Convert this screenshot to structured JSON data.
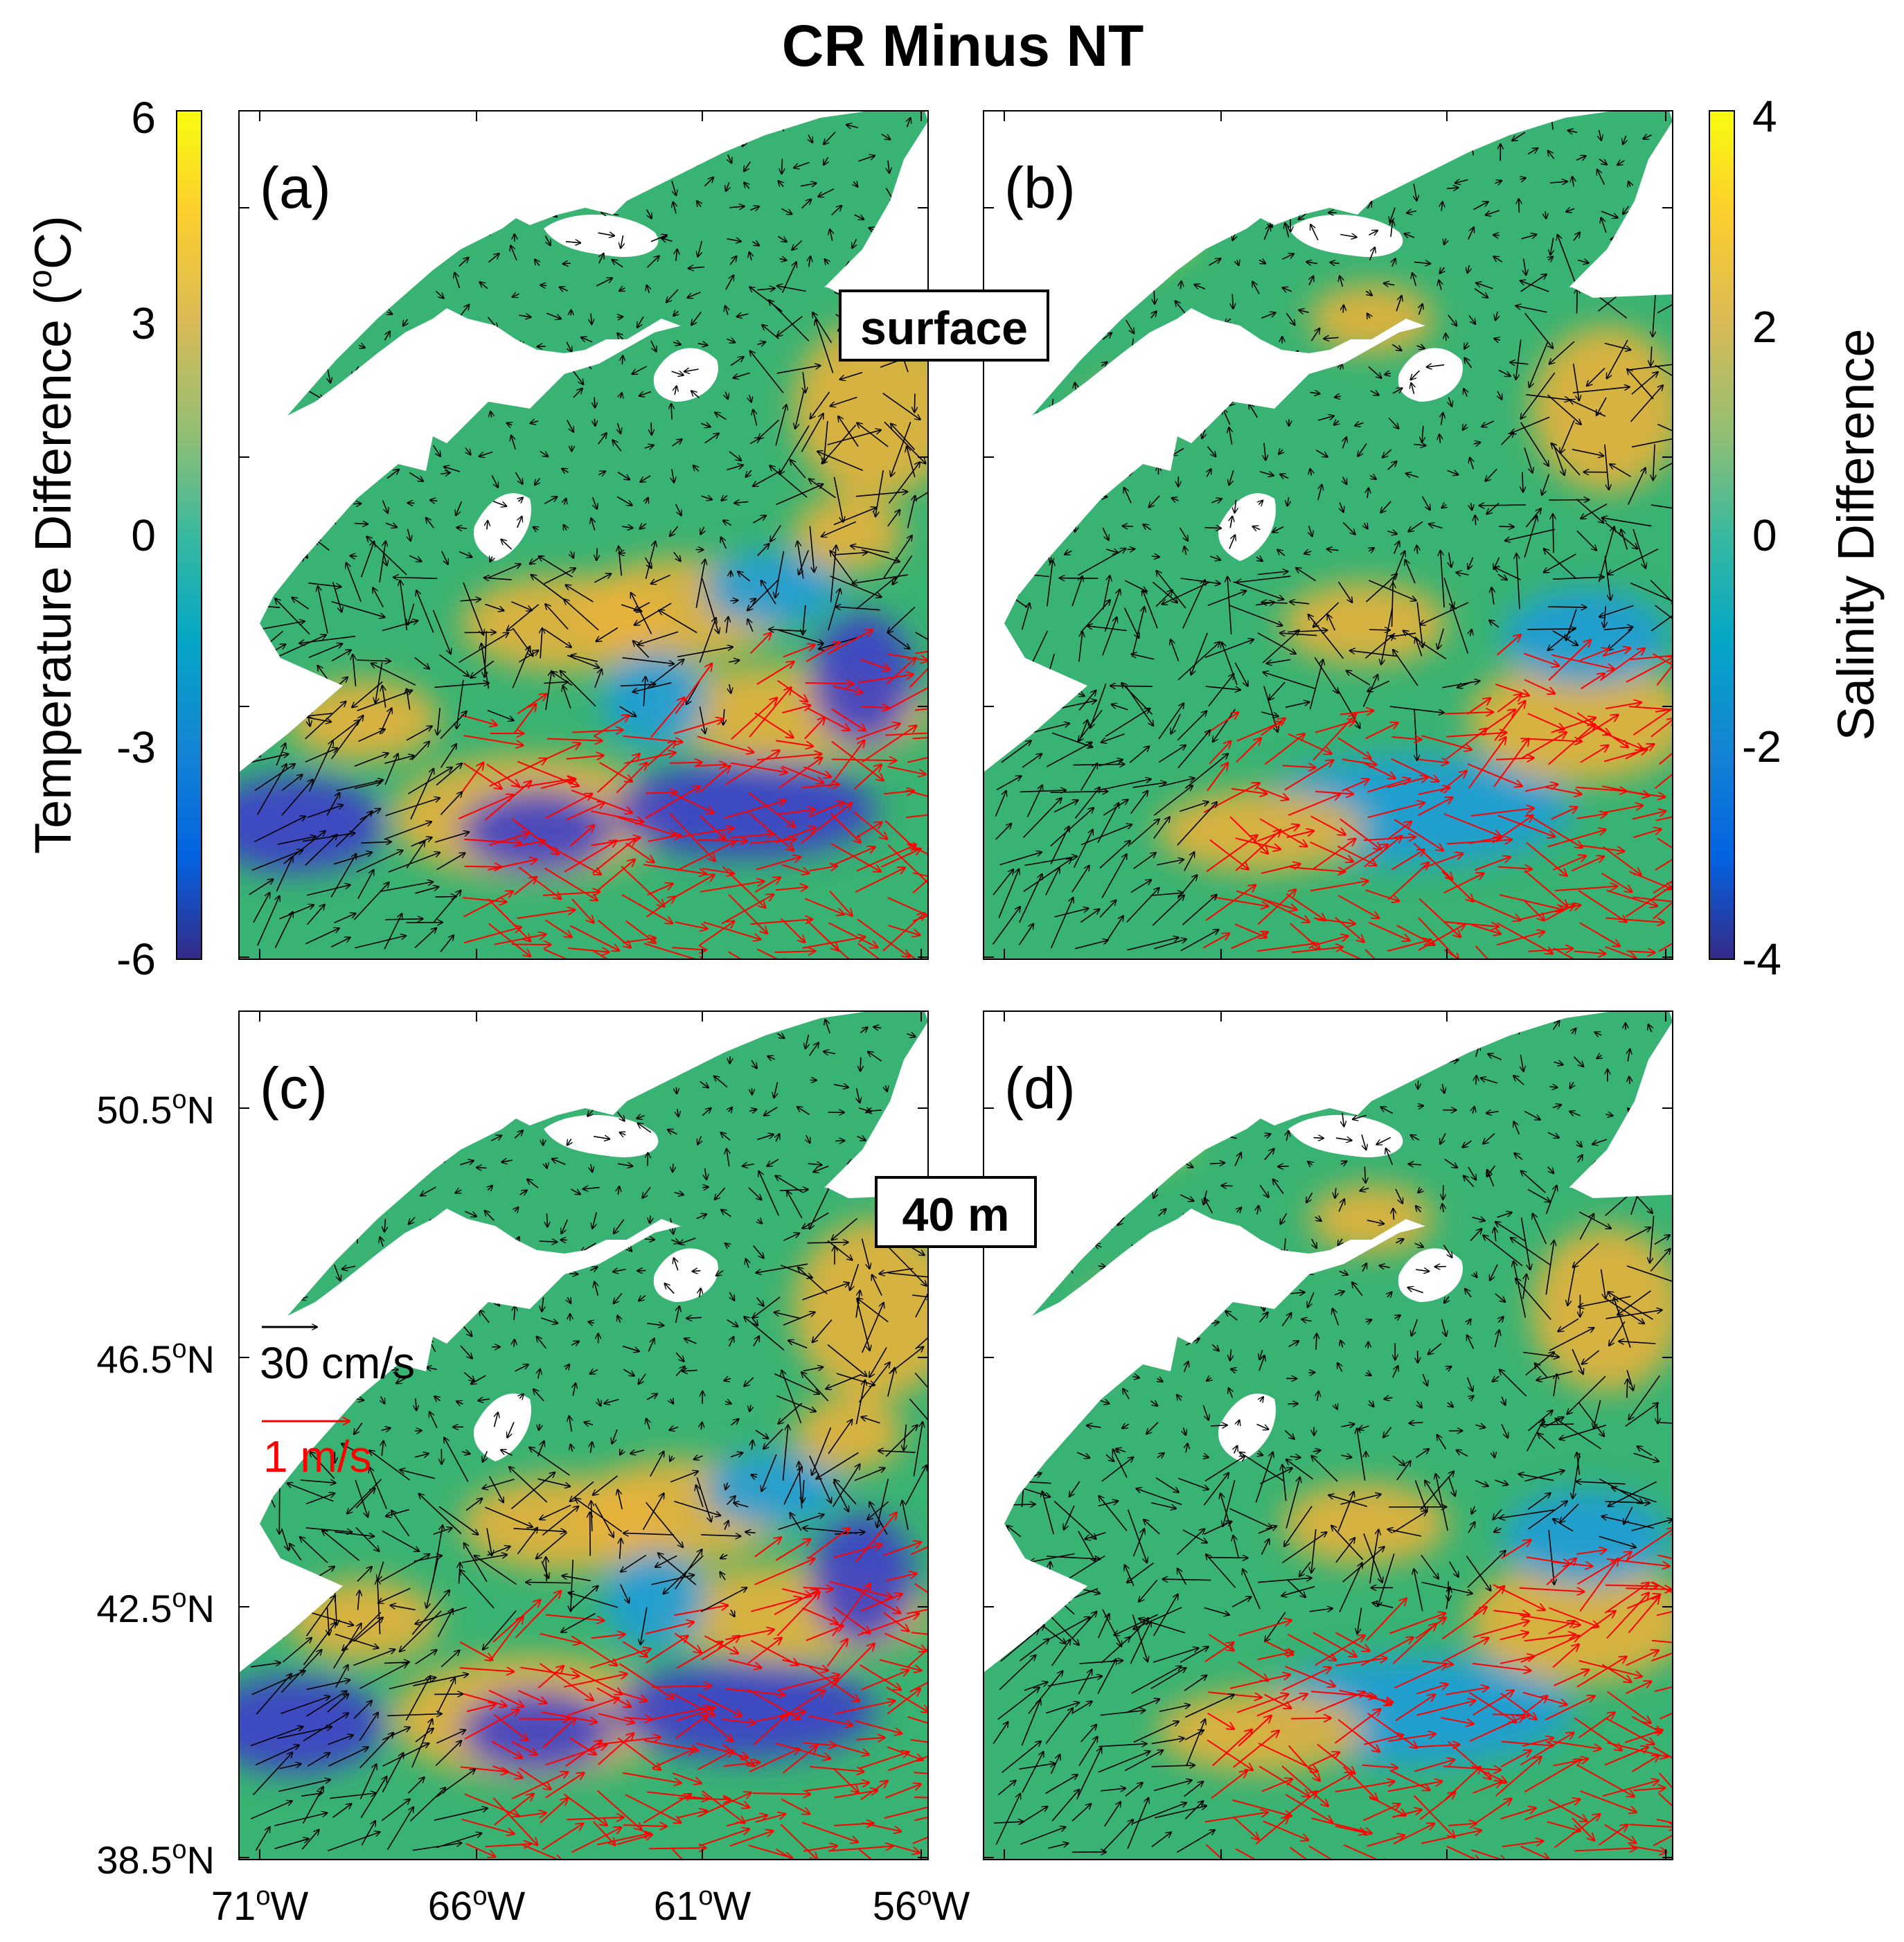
{
  "title": "CR Minus NT",
  "depth_labels": {
    "surface": "surface",
    "m40": "40 m"
  },
  "panels": [
    {
      "id": "a",
      "label": "(a)",
      "field": "temperature",
      "depth": "surface"
    },
    {
      "id": "b",
      "label": "(b)",
      "field": "salinity",
      "depth": "surface"
    },
    {
      "id": "c",
      "label": "(c)",
      "field": "temperature",
      "depth": "40 m"
    },
    {
      "id": "d",
      "label": "(d)",
      "field": "salinity",
      "depth": "40 m"
    }
  ],
  "colorbar_temperature": {
    "label": "Temperature Difference (",
    "label_sup": "o",
    "label_end": "C)",
    "ticks": [
      "6",
      "3",
      "0",
      "-3",
      "-6"
    ]
  },
  "colorbar_salinity": {
    "label": "Salinity Difference",
    "ticks": [
      "4",
      "2",
      "0",
      "-2",
      "-4"
    ]
  },
  "lat_ticks": [
    {
      "num": "50.5",
      "sup": "o",
      "suffix": "N"
    },
    {
      "num": "46.5",
      "sup": "o",
      "suffix": "N"
    },
    {
      "num": "42.5",
      "sup": "o",
      "suffix": "N"
    },
    {
      "num": "38.5",
      "sup": "o",
      "suffix": "N"
    }
  ],
  "lon_ticks": [
    {
      "num": "71",
      "sup": "o",
      "suffix": "W"
    },
    {
      "num": "66",
      "sup": "o",
      "suffix": "W"
    },
    {
      "num": "61",
      "sup": "o",
      "suffix": "W"
    },
    {
      "num": "56",
      "sup": "o",
      "suffix": "W"
    }
  ],
  "scale_black": {
    "label": "30 cm/s",
    "color": "#000000"
  },
  "scale_red": {
    "label": "1 m/s",
    "color": "#ff0000"
  },
  "colors": {
    "land": "#ffffff",
    "ocean_base": "#39b373",
    "warm": "#e8b13a",
    "yellow": "#f2e425",
    "cool": "#1f9cd8",
    "deep_blue": "#3d3fc9",
    "parula": [
      "#352a87",
      "#0363e1",
      "#1485d4",
      "#06a7c6",
      "#38b99e",
      "#92bf73",
      "#d9ba56",
      "#fcce2e",
      "#f9fb0e"
    ]
  }
}
